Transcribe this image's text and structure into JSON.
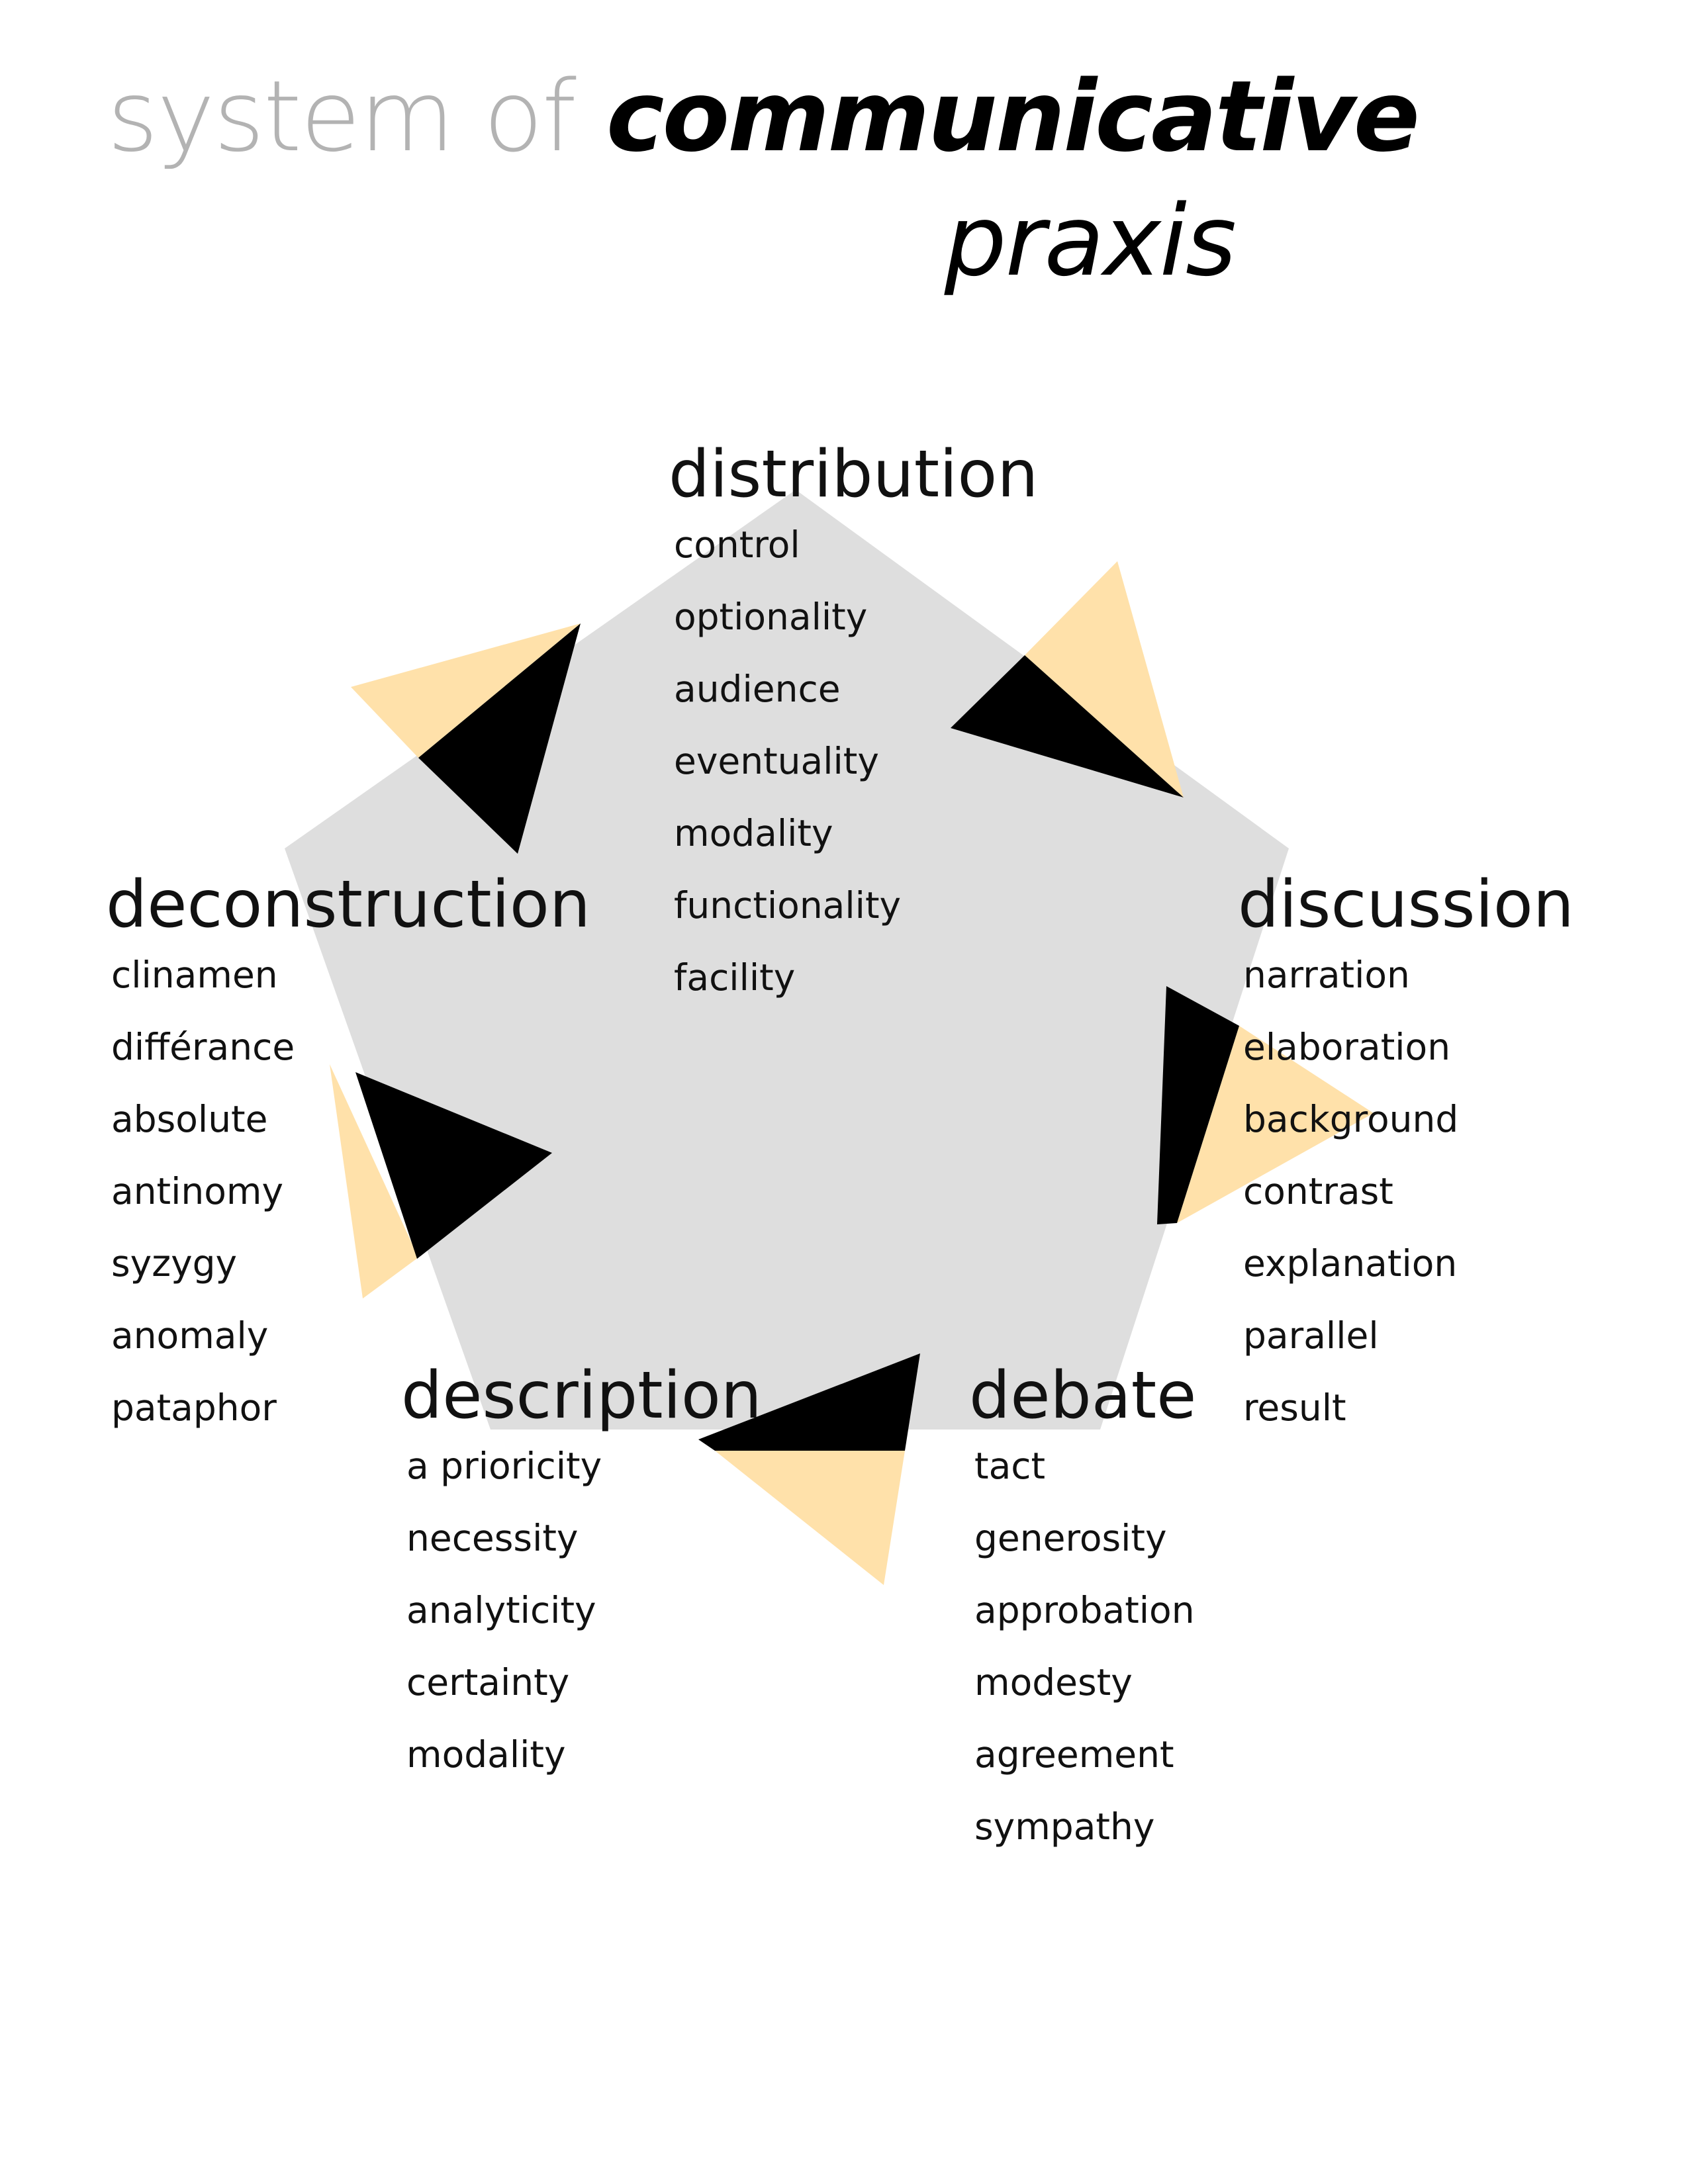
{
  "title": {
    "prefix": "system of",
    "emphasis": "communicative",
    "line2": "praxis"
  },
  "colors": {
    "pentagon_fill": "#dedede",
    "triangle_accent": "#ffe1aa",
    "triangle_dark": "#000000",
    "title_light": "#b3b3b3",
    "text": "#111111"
  },
  "groups": {
    "distribution": {
      "heading": "distribution",
      "items": [
        "control",
        "optionality",
        "audience",
        "eventuality",
        "modality",
        "functionality",
        "facility"
      ]
    },
    "deconstruction": {
      "heading": "deconstruction",
      "items": [
        "clinamen",
        "différance",
        "absolute",
        "antinomy",
        "syzygy",
        "anomaly",
        "pataphor"
      ]
    },
    "discussion": {
      "heading": "discussion",
      "items": [
        "narration",
        "elaboration",
        "background",
        "contrast",
        "explanation",
        "parallel",
        "result"
      ]
    },
    "description": {
      "heading": "description",
      "items": [
        "a prioricity",
        "necessity",
        "analyticity",
        "certainty",
        "modality"
      ]
    },
    "debate": {
      "heading": "debate",
      "items": [
        "tact",
        "generosity",
        "approbation",
        "modesty",
        "agreement",
        "sympathy"
      ]
    }
  }
}
